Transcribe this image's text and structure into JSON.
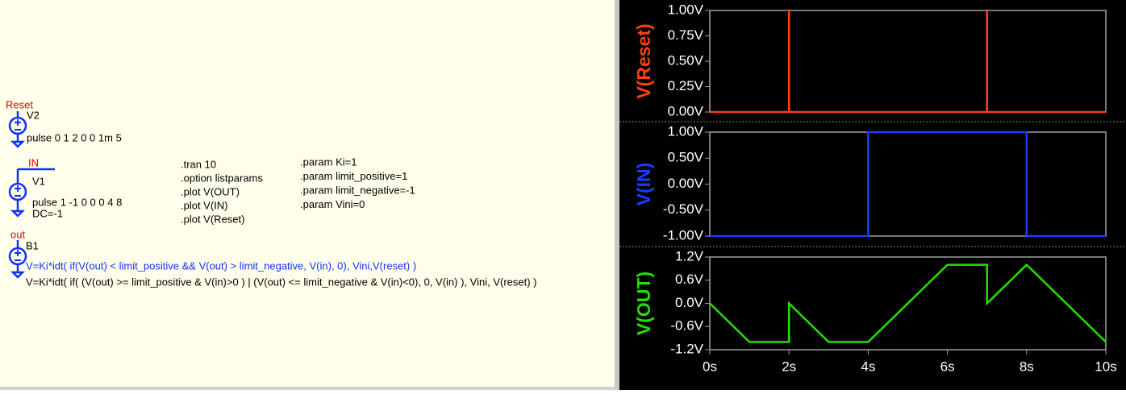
{
  "schematic": {
    "v2": {
      "net": "Reset",
      "name": "V2",
      "value": "pulse 0 1 2 0 0 1m 5"
    },
    "v1": {
      "net": "IN",
      "name": "V1",
      "value": "pulse 1 -1 0 0 0 4 8",
      "dc": "DC=-1"
    },
    "b1": {
      "net": "out",
      "name": "B1",
      "expr_active": "V=Ki*idt( if(V(out) < limit_positive && V(out) > limit_negative, V(in), 0), Vini,V(reset) )",
      "expr_alt": "V=Ki*idt( if( (V(out) >= limit_positive & V(in)>0 ) | (V(out) <= limit_negative & V(in)<0), 0, V(in) ), Vini, V(reset) )"
    },
    "directives": [
      ".tran 10",
      ".option listparams",
      ".plot V(OUT)",
      ".plot V(IN)",
      ".plot V(Reset)"
    ],
    "params": [
      ".param Ki=1",
      ".param limit_positive=1",
      ".param limit_negative=-1",
      ".param Vini=0"
    ]
  },
  "chart_data": [
    {
      "type": "line",
      "ylabel": "V(Reset)",
      "color": "#ff4010",
      "x": [
        0,
        2,
        2,
        2.001,
        2.001,
        7,
        7,
        7.001,
        7.001,
        10
      ],
      "values": [
        0,
        0,
        1,
        1,
        0,
        0,
        1,
        1,
        0,
        0
      ],
      "xlim": [
        0,
        10
      ],
      "ylim": [
        0,
        1
      ],
      "yticks": [
        {
          "value": 1,
          "label": "1.00V"
        },
        {
          "value": 0.75,
          "label": "0.75V"
        },
        {
          "value": 0.5,
          "label": "0.50V"
        },
        {
          "value": 0.25,
          "label": "0.25V"
        },
        {
          "value": 0,
          "label": "0.00V"
        }
      ]
    },
    {
      "type": "line",
      "ylabel": "V(IN)",
      "color": "#1a3cff",
      "x": [
        0,
        4,
        4,
        8,
        8,
        10
      ],
      "values": [
        -1,
        -1,
        1,
        1,
        -1,
        -1
      ],
      "xlim": [
        0,
        10
      ],
      "ylim": [
        -1,
        1
      ],
      "yticks": [
        {
          "value": 1,
          "label": "1.00V"
        },
        {
          "value": 0.5,
          "label": "0.50V"
        },
        {
          "value": 0,
          "label": "0.00V"
        },
        {
          "value": -0.5,
          "label": "-0.50V"
        },
        {
          "value": -1,
          "label": "-1.00V"
        }
      ]
    },
    {
      "type": "line",
      "ylabel": "V(OUT)",
      "color": "#22e000",
      "x": [
        0,
        1,
        2,
        2,
        3,
        4,
        6,
        7,
        7,
        8,
        10
      ],
      "values": [
        0,
        -1,
        -1,
        0,
        -1,
        -1,
        1,
        1,
        0,
        1,
        -1
      ],
      "xlim": [
        0,
        10
      ],
      "ylim": [
        -1.2,
        1.2
      ],
      "yticks": [
        {
          "value": 1.2,
          "label": "1.2V"
        },
        {
          "value": 0.6,
          "label": "0.6V"
        },
        {
          "value": 0,
          "label": "0.0V"
        },
        {
          "value": -0.6,
          "label": "-0.6V"
        },
        {
          "value": -1.2,
          "label": "-1.2V"
        }
      ],
      "xticks": [
        {
          "value": 0,
          "label": "0s"
        },
        {
          "value": 2,
          "label": "2s"
        },
        {
          "value": 4,
          "label": "4s"
        },
        {
          "value": 6,
          "label": "6s"
        },
        {
          "value": 8,
          "label": "8s"
        },
        {
          "value": 10,
          "label": "10s"
        }
      ]
    }
  ]
}
